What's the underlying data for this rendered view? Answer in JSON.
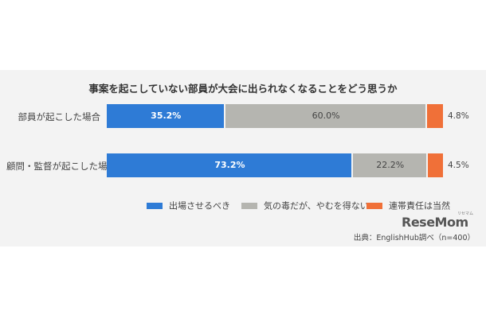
{
  "chart_data": {
    "type": "bar",
    "orientation": "horizontal",
    "stacked": true,
    "title": "事案を起こしていない部員が大会に出られなくなることをどう思うか",
    "categories": [
      "部員が起こした場合",
      "顧問・監督が起こした場合"
    ],
    "series": [
      {
        "name": "出場させるべき",
        "values": [
          35.2,
          73.2
        ],
        "labels": [
          "35.2%",
          "73.2%"
        ],
        "color": "#2e7bd6"
      },
      {
        "name": "気の毒だが、やむを得ない",
        "values": [
          60.0,
          22.2
        ],
        "labels": [
          "60.0%",
          "22.2%"
        ],
        "color": "#b5b5b0"
      },
      {
        "name": "連帯責任は当然",
        "values": [
          4.8,
          4.5
        ],
        "labels": [
          "4.8%",
          "4.5%"
        ],
        "color": "#f07038"
      }
    ],
    "xlim": [
      0,
      100
    ],
    "grid": false,
    "legend_position": "bottom"
  },
  "branding": {
    "logo_text": "ReseMom",
    "logo_kana": "リセマム"
  },
  "source": "出典：EnglishHub調べ（n=400）"
}
